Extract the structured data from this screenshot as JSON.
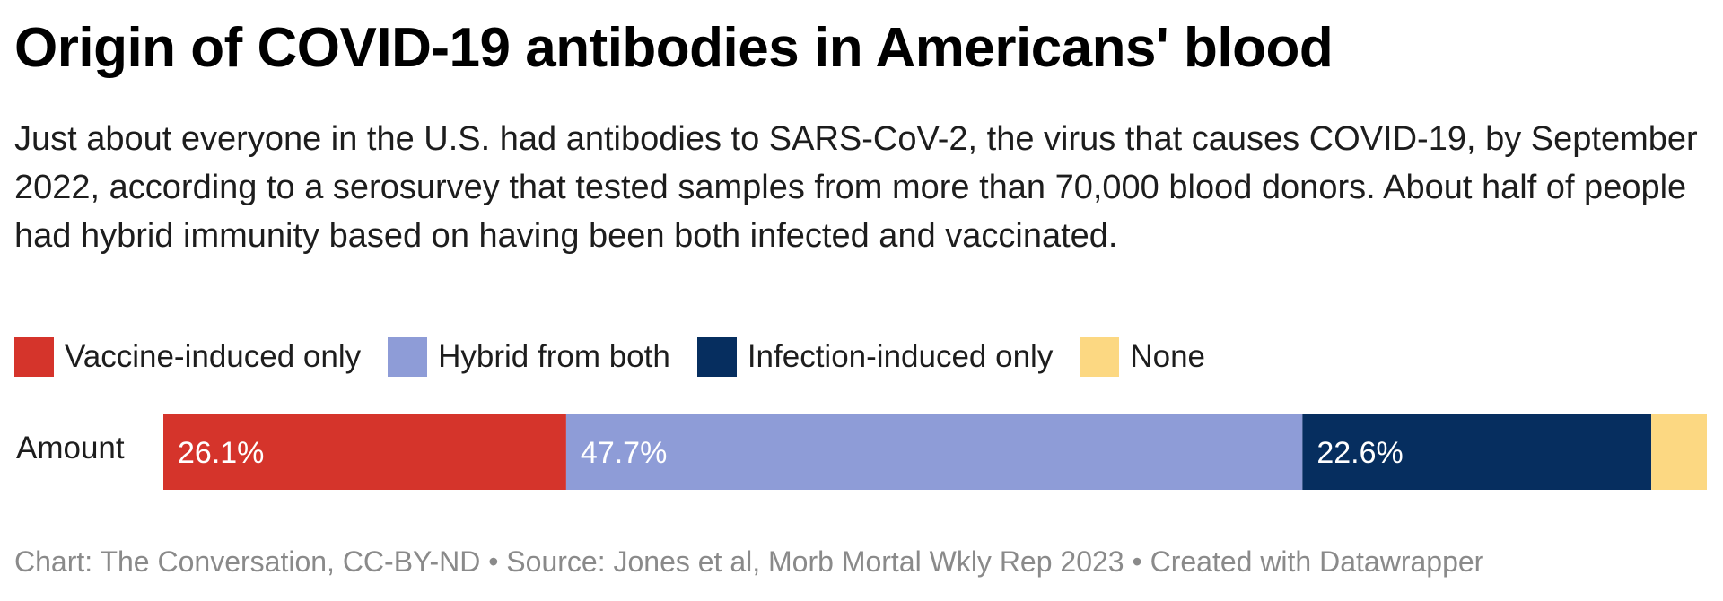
{
  "title": "Origin of COVID-19 antibodies in Americans' blood",
  "subtitle": "Just about everyone in the U.S. had antibodies to SARS-CoV-2, the virus that causes COVID-19, by September 2022, according to a serosurvey that tested samples from more than 70,000 blood donors. About half of people had hybrid immunity based on having been both infected and vaccinated.",
  "footer": "Chart: The Conversation, CC-BY-ND • Source: Jones et al, Morb Mortal Wkly Rep 2023 • Created with Datawrapper",
  "chart_data": {
    "type": "bar",
    "stacked": true,
    "orientation": "horizontal",
    "categories": [
      "Amount"
    ],
    "xlim": [
      0,
      100
    ],
    "legend_position": "top-left",
    "grid": false,
    "series": [
      {
        "name": "Vaccine-induced only",
        "values": [
          26.1
        ],
        "label": "26.1%",
        "color": "#d5342b",
        "text_color": "#ffffff"
      },
      {
        "name": "Hybrid from both",
        "values": [
          47.7
        ],
        "label": "47.7%",
        "color": "#8e9cd7",
        "text_color": "#ffffff"
      },
      {
        "name": "Infection-induced only",
        "values": [
          22.6
        ],
        "label": "22.6%",
        "color": "#062e5f",
        "text_color": "#ffffff"
      },
      {
        "name": "None",
        "values": [
          3.6
        ],
        "label": "",
        "color": "#fcd882",
        "text_color": "#1d1d1d"
      }
    ]
  }
}
